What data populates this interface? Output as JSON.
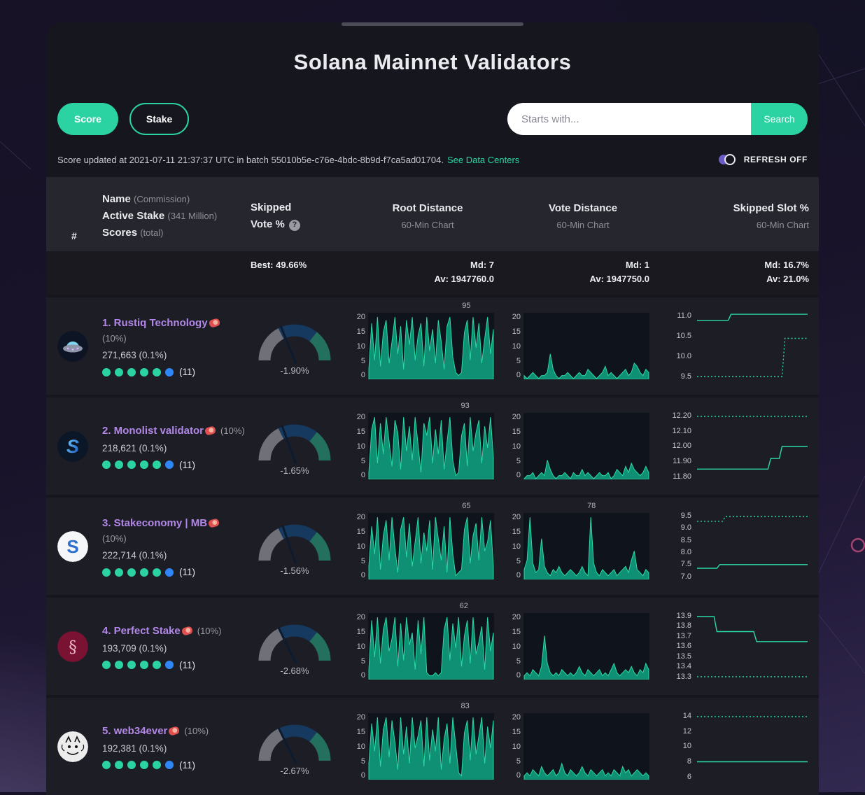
{
  "theme": {
    "accent": "#2bd3a3",
    "name_color": "#b287e8",
    "chart_line": "#2bd9a6",
    "chart_fill": "#0f8f73",
    "panel_bg": "#0e131c",
    "gauge_gray": "#707079",
    "gauge_navy": "#16395f",
    "gauge_teal": "#23705f",
    "dot_teal": "#2bd3a3",
    "dot_blue": "#2f86f6"
  },
  "page": {
    "title": "Solana Mainnet Validators",
    "score_button": "Score",
    "stake_button": "Stake",
    "search_placeholder": "Starts with...",
    "search_button": "Search",
    "status_text": "Score updated at 2021-07-11 21:37:37 UTC in batch 55010b5e-c76e-4bdc-8b9d-f7ca5ad01704.",
    "status_link": "See Data Centers",
    "refresh_label": "REFRESH OFF"
  },
  "table": {
    "header": {
      "rank": "#",
      "name": "Name",
      "name_sub": "(Commission)",
      "stake": "Active Stake",
      "stake_sub": "(341 Million)",
      "scores": "Scores",
      "scores_sub": "(total)",
      "skipped_line1": "Skipped",
      "skipped_line2": "Vote %",
      "help": "?",
      "root": "Root Distance",
      "vote": "Vote Distance",
      "slot": "Skipped Slot %",
      "chart_sub": "60-Min Chart"
    },
    "stats": {
      "best": "Best: 49.66%",
      "root_md": "Md: 7",
      "root_av": "Av: 1947760.0",
      "vote_md": "Md: 1",
      "vote_av": "Av: 1947750.0",
      "slot_md": "Md: 16.7%",
      "slot_av": "Av: 21.0%"
    }
  },
  "validators": [
    {
      "name": "1. Rustiq Technology",
      "commission": "(10%)",
      "commission_block": true,
      "stake": "271,663 (0.1%)",
      "score_total": "(11)",
      "dots": {
        "teal": 5,
        "blue": 1
      },
      "avatar": "ufo",
      "gauge": {
        "label": "-1.90%",
        "needle_deg": 112
      },
      "root_chart": {
        "type": "area",
        "yticks": [
          "20",
          "15",
          "10",
          "5",
          "0"
        ],
        "ymax": 20,
        "peak_label": "95",
        "peak_pos": 0.78,
        "values": [
          3,
          18,
          6,
          20,
          4,
          15,
          19,
          5,
          12,
          20,
          8,
          17,
          3,
          19,
          11,
          20,
          6,
          14,
          18,
          4,
          20,
          9,
          16,
          5,
          19,
          12,
          3,
          17,
          20,
          7,
          2,
          1,
          2,
          15,
          19,
          6,
          20,
          10,
          18,
          5,
          13,
          20,
          8,
          16
        ]
      },
      "vote_chart": {
        "type": "area",
        "yticks": [
          "20",
          "15",
          "10",
          "5",
          "0"
        ],
        "ymax": 20,
        "peak_label": "",
        "peak_pos": 0,
        "values": [
          1,
          0,
          1,
          2,
          1,
          0,
          1,
          1,
          2,
          8,
          3,
          1,
          0,
          1,
          1,
          2,
          1,
          0,
          1,
          2,
          1,
          1,
          3,
          2,
          1,
          0,
          1,
          2,
          4,
          1,
          2,
          1,
          0,
          1,
          2,
          3,
          1,
          2,
          5,
          4,
          2,
          1,
          3,
          2
        ]
      },
      "slot_chart": {
        "type": "line",
        "ticks": [
          "11.0",
          "10.5",
          "10.0",
          "9.5"
        ],
        "solid": [
          [
            10.9,
            12
          ],
          [
            11.05,
            28
          ]
        ],
        "dotted": [
          [
            9.5,
            31
          ],
          [
            10.45,
            9
          ]
        ]
      }
    },
    {
      "name": "2. Monolist validator",
      "commission": "(10%)",
      "commission_block": false,
      "stake": "218,621 (0.1%)",
      "score_total": "(11)",
      "dots": {
        "teal": 5,
        "blue": 1
      },
      "avatar": "monolist",
      "gauge": {
        "label": "-1.65%",
        "needle_deg": 110
      },
      "root_chart": {
        "type": "area",
        "yticks": [
          "20",
          "15",
          "10",
          "5",
          "0"
        ],
        "ymax": 20,
        "peak_label": "93",
        "peak_pos": 0.77,
        "values": [
          2,
          16,
          20,
          5,
          18,
          8,
          20,
          12,
          4,
          19,
          15,
          3,
          20,
          9,
          17,
          6,
          20,
          11,
          2,
          18,
          14,
          20,
          5,
          16,
          8,
          19,
          3,
          12,
          20,
          6,
          1,
          2,
          14,
          18,
          4,
          20,
          9,
          15,
          19,
          5,
          17,
          10,
          20,
          7
        ]
      },
      "vote_chart": {
        "type": "area",
        "yticks": [
          "20",
          "15",
          "10",
          "5",
          "0"
        ],
        "ymax": 20,
        "peak_label": "",
        "peak_pos": 0,
        "values": [
          0,
          1,
          1,
          2,
          0,
          1,
          2,
          1,
          6,
          3,
          1,
          0,
          1,
          1,
          2,
          1,
          0,
          2,
          1,
          1,
          3,
          1,
          2,
          1,
          0,
          1,
          2,
          1,
          1,
          2,
          0,
          1,
          3,
          2,
          1,
          4,
          2,
          5,
          3,
          2,
          1,
          2,
          4,
          2
        ]
      },
      "slot_chart": {
        "type": "line",
        "ticks": [
          "12.20",
          "12.10",
          "12.00",
          "11.90",
          "11.80"
        ],
        "solid": [
          [
            11.85,
            26
          ],
          [
            11.92,
            4
          ],
          [
            12.0,
            10
          ]
        ],
        "dotted": [
          [
            12.2,
            40
          ]
        ]
      }
    },
    {
      "name": "3. Stakeconomy | MB",
      "commission": "(10%)",
      "commission_block": true,
      "stake": "222,714 (0.1%)",
      "score_total": "(11)",
      "dots": {
        "teal": 5,
        "blue": 1
      },
      "avatar": "stakeconomy",
      "gauge": {
        "label": "-1.56%",
        "needle_deg": 109
      },
      "root_chart": {
        "type": "area",
        "yticks": [
          "20",
          "15",
          "10",
          "5",
          "0"
        ],
        "ymax": 20,
        "peak_label": "65",
        "peak_pos": 0.78,
        "values": [
          4,
          17,
          8,
          20,
          3,
          14,
          19,
          6,
          20,
          10,
          2,
          16,
          20,
          7,
          18,
          4,
          12,
          20,
          5,
          15,
          9,
          19,
          3,
          20,
          13,
          6,
          17,
          2,
          20,
          8,
          1,
          2,
          3,
          16,
          20,
          5,
          14,
          18,
          6,
          20,
          9,
          12,
          19,
          4
        ]
      },
      "vote_chart": {
        "type": "area",
        "yticks": [
          "20",
          "15",
          "10",
          "5",
          "0"
        ],
        "ymax": 20,
        "peak_label": "78",
        "peak_pos": 0.54,
        "values": [
          3,
          6,
          20,
          5,
          2,
          3,
          13,
          4,
          2,
          1,
          3,
          2,
          4,
          2,
          1,
          2,
          3,
          2,
          1,
          2,
          4,
          2,
          1,
          20,
          5,
          2,
          1,
          3,
          2,
          1,
          2,
          3,
          1,
          2,
          3,
          4,
          2,
          6,
          9,
          3,
          2,
          1,
          3,
          2
        ]
      },
      "slot_chart": {
        "type": "line",
        "ticks": [
          "9.5",
          "9.0",
          "8.5",
          "8.0",
          "7.5",
          "7.0"
        ],
        "solid": [
          [
            7.35,
            8
          ],
          [
            7.5,
            32
          ]
        ],
        "dotted": [
          [
            9.3,
            10
          ],
          [
            9.5,
            30
          ]
        ]
      }
    },
    {
      "name": "4. Perfect Stake",
      "badge": "steak",
      "commission": "(10%)",
      "commission_block": false,
      "stake": "193,709 (0.1%)",
      "score_total": "(11)",
      "dots": {
        "teal": 5,
        "blue": 1
      },
      "avatar": "perfect",
      "gauge": {
        "label": "-2.68%",
        "needle_deg": 116
      },
      "root_chart": {
        "type": "area",
        "yticks": [
          "20",
          "15",
          "10",
          "5",
          "0"
        ],
        "ymax": 20,
        "peak_label": "62",
        "peak_pos": 0.76,
        "values": [
          3,
          19,
          7,
          20,
          5,
          16,
          20,
          9,
          13,
          20,
          4,
          18,
          6,
          20,
          11,
          15,
          3,
          19,
          8,
          20,
          2,
          1,
          1,
          2,
          1,
          2,
          16,
          20,
          6,
          18,
          10,
          20,
          4,
          14,
          19,
          5,
          20,
          8,
          12,
          17,
          3,
          20,
          9,
          15
        ]
      },
      "vote_chart": {
        "type": "area",
        "yticks": [
          "20",
          "15",
          "10",
          "5",
          "0"
        ],
        "ymax": 20,
        "peak_label": "",
        "peak_pos": 0,
        "values": [
          1,
          2,
          1,
          3,
          2,
          1,
          4,
          14,
          5,
          2,
          1,
          2,
          1,
          3,
          2,
          1,
          2,
          1,
          2,
          4,
          2,
          1,
          3,
          2,
          1,
          2,
          3,
          1,
          2,
          1,
          3,
          5,
          2,
          1,
          2,
          3,
          2,
          4,
          2,
          1,
          3,
          2,
          5,
          3
        ]
      },
      "slot_chart": {
        "type": "line",
        "ticks": [
          "13.9",
          "13.8",
          "13.7",
          "13.6",
          "13.5",
          "13.4",
          "13.3"
        ],
        "solid": [
          [
            13.9,
            7
          ],
          [
            13.75,
            14
          ],
          [
            13.65,
            19
          ]
        ],
        "dotted": [
          [
            13.3,
            40
          ]
        ]
      }
    },
    {
      "name": "5. web34ever",
      "commission": "(10%)",
      "commission_block": false,
      "stake": "192,381 (0.1%)",
      "score_total": "(11)",
      "dots": {
        "teal": 5,
        "blue": 1
      },
      "avatar": "web3",
      "gauge": {
        "label": "-2.67%",
        "needle_deg": 116
      },
      "root_chart": {
        "type": "area",
        "yticks": [
          "20",
          "15",
          "10",
          "5",
          "0"
        ],
        "ymax": 20,
        "peak_label": "83",
        "peak_pos": 0.77,
        "values": [
          5,
          18,
          9,
          20,
          4,
          16,
          20,
          7,
          19,
          12,
          3,
          20,
          8,
          17,
          5,
          20,
          10,
          14,
          19,
          4,
          20,
          6,
          16,
          9,
          20,
          3,
          13,
          18,
          5,
          20,
          11,
          2,
          1,
          15,
          19,
          6,
          20,
          8,
          14,
          20,
          5,
          17,
          10,
          19
        ]
      },
      "vote_chart": {
        "type": "area",
        "yticks": [
          "20",
          "15",
          "10",
          "5",
          "0"
        ],
        "ymax": 20,
        "peak_label": "",
        "peak_pos": 0,
        "values": [
          1,
          2,
          1,
          3,
          2,
          1,
          4,
          2,
          1,
          2,
          3,
          1,
          2,
          5,
          2,
          1,
          3,
          2,
          1,
          2,
          4,
          2,
          1,
          3,
          2,
          1,
          2,
          3,
          1,
          2,
          1,
          3,
          2,
          1,
          4,
          2,
          3,
          1,
          2,
          3,
          2,
          1,
          2,
          1
        ]
      },
      "slot_chart": {
        "type": "line",
        "ticks": [
          "14",
          "12",
          "10",
          "8",
          "6"
        ],
        "solid": [
          [
            8,
            40
          ]
        ],
        "dotted": [
          [
            14,
            40
          ]
        ]
      }
    }
  ]
}
